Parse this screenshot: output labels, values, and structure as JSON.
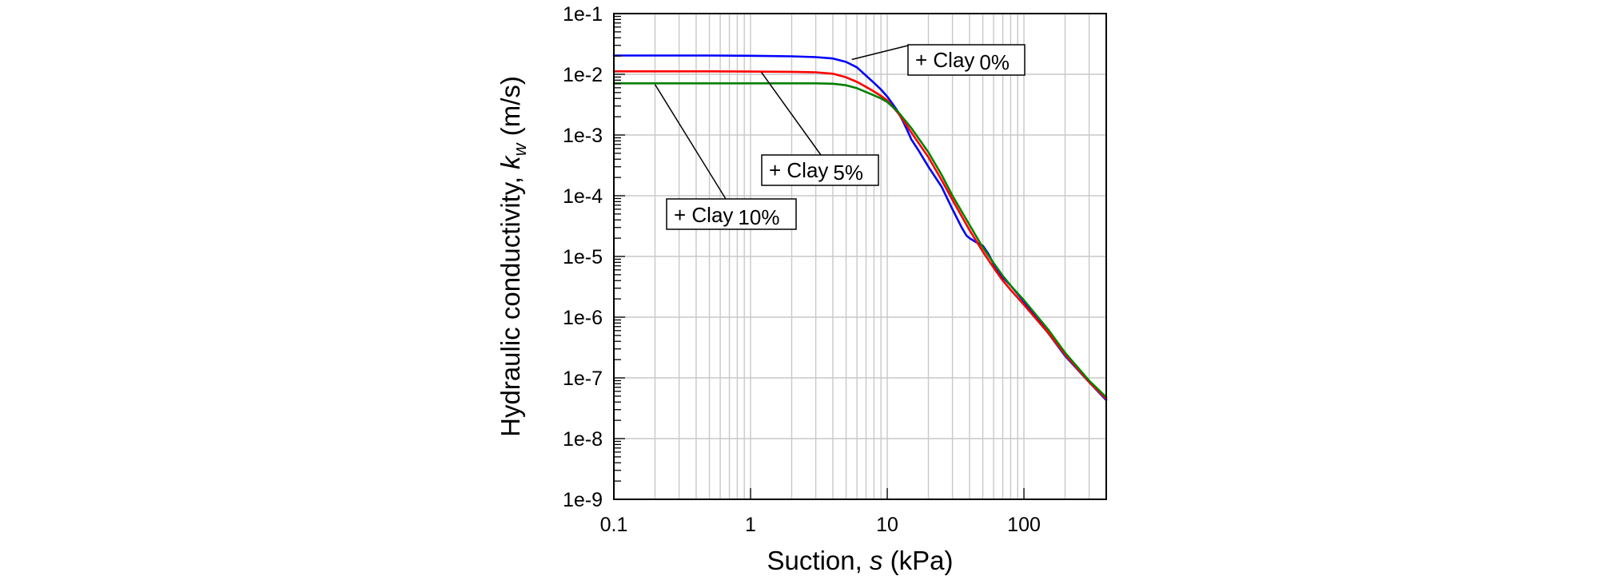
{
  "chart_data": {
    "type": "line",
    "x_scale": "log",
    "y_scale": "log",
    "xlabel": {
      "text": "Suction, ",
      "var": "s",
      "unit": " (kPa)"
    },
    "ylabel": {
      "text": "Hydraulic conductivity, ",
      "var": "k",
      "sub": "w",
      "unit": " (m/s)"
    },
    "xlim": [
      0.1,
      400
    ],
    "ylim": [
      1e-09,
      0.1
    ],
    "grid": true,
    "x_ticks": [
      {
        "value": 0.1,
        "label": "0.1"
      },
      {
        "value": 1,
        "label": "1"
      },
      {
        "value": 10,
        "label": "10"
      },
      {
        "value": 100,
        "label": "100"
      }
    ],
    "y_ticks": [
      {
        "value": 0.1,
        "label": "1e-1"
      },
      {
        "value": 0.01,
        "label": "1e-2"
      },
      {
        "value": 0.001,
        "label": "1e-3"
      },
      {
        "value": 0.0001,
        "label": "1e-4"
      },
      {
        "value": 1e-05,
        "label": "1e-5"
      },
      {
        "value": 1e-06,
        "label": "1e-6"
      },
      {
        "value": 1e-07,
        "label": "1e-7"
      },
      {
        "value": 1e-08,
        "label": "1e-8"
      },
      {
        "value": 1e-09,
        "label": "1e-9"
      }
    ],
    "series": [
      {
        "name": "+ Clay 0%",
        "color": "#0000ff",
        "x": [
          0.1,
          0.5,
          1,
          2,
          3,
          4,
          5,
          6,
          7,
          8,
          9,
          10,
          11,
          12,
          13,
          14,
          15,
          17,
          20,
          25,
          30,
          35,
          38,
          40,
          45,
          50,
          55,
          60,
          70,
          80,
          100,
          150,
          200,
          300,
          400
        ],
        "y": [
          0.0204,
          0.0204,
          0.0202,
          0.0198,
          0.0192,
          0.0182,
          0.016,
          0.013,
          0.0095,
          0.0072,
          0.0056,
          0.0043,
          0.0032,
          0.0024,
          0.0017,
          0.0012,
          0.00085,
          0.00055,
          0.0003,
          0.00014,
          6e-05,
          3e-05,
          2.2e-05,
          2e-05,
          1.7e-05,
          1.5e-05,
          1.1e-05,
          7.5e-06,
          4.5e-06,
          3.3e-06,
          1.8e-06,
          5.5e-07,
          2.3e-07,
          8.5e-08,
          4.3e-08
        ]
      },
      {
        "name": "+ Clay 5%",
        "color": "#ff0000",
        "x": [
          0.1,
          0.5,
          1,
          2,
          3,
          4,
          5,
          6,
          7,
          8,
          9,
          10,
          12,
          15,
          20,
          25,
          30,
          40,
          50,
          60,
          70,
          80,
          100,
          150,
          200,
          300,
          400
        ],
        "y": [
          0.0112,
          0.0112,
          0.0111,
          0.011,
          0.0108,
          0.0102,
          0.0089,
          0.0075,
          0.0062,
          0.0052,
          0.0044,
          0.0037,
          0.0023,
          0.0011,
          0.00043,
          0.00018,
          8.5e-05,
          2.7e-05,
          1.2e-05,
          6.5e-06,
          4e-06,
          2.8e-06,
          1.6e-06,
          5.5e-07,
          2.4e-07,
          8.5e-08,
          4.5e-08
        ]
      },
      {
        "name": "+ Clay 10%",
        "color": "#008000",
        "x": [
          0.1,
          0.5,
          1,
          2,
          3,
          4,
          5,
          6,
          7,
          8,
          9,
          10,
          12,
          15,
          20,
          25,
          30,
          40,
          50,
          60,
          70,
          80,
          100,
          150,
          200,
          300,
          400
        ],
        "y": [
          0.0071,
          0.0071,
          0.0071,
          0.0071,
          0.0071,
          0.007,
          0.0066,
          0.0059,
          0.0051,
          0.0045,
          0.004,
          0.0035,
          0.0024,
          0.0013,
          0.00052,
          0.00022,
          0.0001,
          3.3e-05,
          1.4e-05,
          7.8e-06,
          4.8e-06,
          3.3e-06,
          1.9e-06,
          6.3e-07,
          2.6e-07,
          9e-08,
          4.8e-08
        ]
      }
    ],
    "annotations": [
      {
        "label": "+ Clay",
        "value": "0%",
        "series": 0,
        "target": [
          5.5,
          0.0175
        ]
      },
      {
        "label": "+ Clay",
        "value": "5%",
        "series": 1,
        "target": [
          1.2,
          0.0108
        ]
      },
      {
        "label": "+ Clay",
        "value": "10%",
        "series": 2,
        "target": [
          0.2,
          0.0068
        ]
      }
    ]
  }
}
